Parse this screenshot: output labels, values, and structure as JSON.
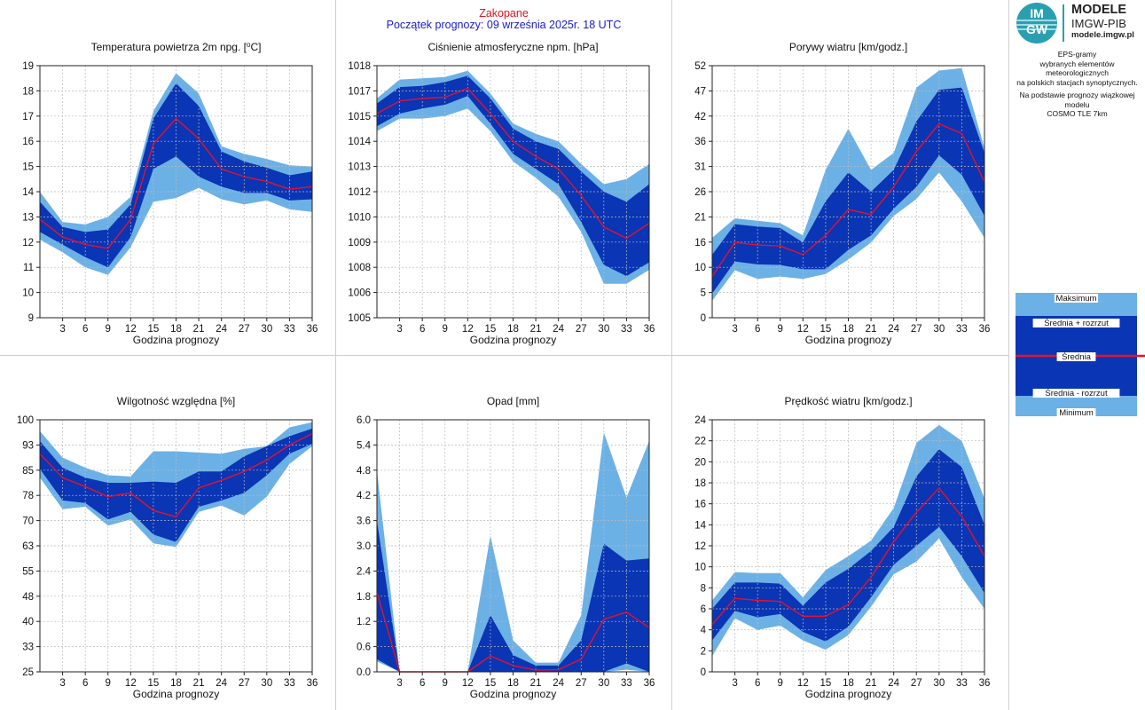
{
  "header": {
    "station": "Zakopane",
    "forecast_start": "Początek prognozy: 09 września 2025r. 18 UTC"
  },
  "logo": {
    "mark_top": "IM",
    "mark_bottom": "GW",
    "line1": "MODELE",
    "line2": "IMGW-PIB",
    "line3": "modele.imgw.pl"
  },
  "info": {
    "line1": "EPS-gramy",
    "line2": "wybranych elementów meteorologicznych",
    "line3": "na polskich stacjach  synoptycznych.",
    "line4": "Na podstawie prognozy wiązkowej modelu",
    "line5": "COSMO TLE 7km"
  },
  "legend": {
    "max": "Maksimum",
    "mean_plus": "Średnia + rozrzut",
    "mean": "Średnia",
    "mean_minus": "Średnia - rozrzut",
    "min": "Minimum"
  },
  "colors": {
    "outer_band": "#6cb1e6",
    "inner_band": "#0a35b4",
    "mean_line": "#e8102c",
    "grid": "#b9b9b9"
  },
  "chart_data": [
    {
      "id": "temp",
      "type": "area",
      "title": "Temperatura powietrza 2m npg. [",
      "title_sup": "o",
      "title_end": "C]",
      "xlabel": "Godzina prognozy",
      "x": [
        0,
        3,
        6,
        9,
        12,
        15,
        18,
        21,
        24,
        27,
        30,
        33,
        36
      ],
      "xticks": [
        3,
        6,
        9,
        12,
        15,
        18,
        21,
        24,
        27,
        30,
        33,
        36
      ],
      "xlim": [
        0,
        36
      ],
      "yticks": [
        "9",
        "10",
        "11",
        "12",
        "13",
        "14",
        "15",
        "16",
        "17",
        "18",
        "19"
      ],
      "ylim": [
        9,
        19
      ],
      "series": {
        "max": [
          14.0,
          12.8,
          12.7,
          13.0,
          13.8,
          17.2,
          18.7,
          17.9,
          15.8,
          15.5,
          15.3,
          15.05,
          15.0
        ],
        "mean_plus": [
          13.6,
          12.6,
          12.4,
          12.5,
          13.5,
          16.9,
          18.3,
          17.4,
          15.6,
          15.2,
          14.95,
          14.65,
          14.8
        ],
        "mean": [
          12.9,
          12.2,
          11.9,
          11.75,
          12.9,
          15.9,
          16.9,
          16.1,
          14.9,
          14.6,
          14.4,
          14.1,
          14.2
        ],
        "mean_minus": [
          12.4,
          11.9,
          11.4,
          11.0,
          12.2,
          14.9,
          15.4,
          14.6,
          14.2,
          13.95,
          13.95,
          13.65,
          13.7
        ],
        "min": [
          12.1,
          11.6,
          11.0,
          10.7,
          11.8,
          13.6,
          13.75,
          14.15,
          13.7,
          13.5,
          13.65,
          13.3,
          13.2
        ]
      }
    },
    {
      "id": "press",
      "type": "area",
      "title": "Ciśnienie atmosferyczne npm. [hPa]",
      "xlabel": "Godzina prognozy",
      "x": [
        0,
        3,
        6,
        9,
        12,
        15,
        18,
        21,
        24,
        27,
        30,
        33,
        36
      ],
      "xticks": [
        3,
        6,
        9,
        12,
        15,
        18,
        21,
        24,
        27,
        30,
        33,
        36
      ],
      "xlim": [
        0,
        36
      ],
      "yticks": [
        "1005",
        "1006",
        "1008",
        "1009",
        "1010",
        "1012",
        "1013",
        "1014",
        "1015",
        "1017",
        "1018"
      ],
      "ylim": [
        0,
        10
      ],
      "series": {
        "max": [
          8.7,
          9.45,
          9.5,
          9.55,
          9.8,
          8.9,
          7.7,
          7.3,
          7.0,
          6.1,
          5.3,
          5.5,
          6.1
        ],
        "mean_plus": [
          8.5,
          9.15,
          9.2,
          9.35,
          9.6,
          8.7,
          7.5,
          7.0,
          6.7,
          5.8,
          5.0,
          4.6,
          5.3
        ],
        "mean": [
          8.1,
          8.6,
          8.7,
          8.75,
          9.1,
          8.1,
          7.0,
          6.4,
          5.9,
          4.85,
          3.6,
          3.15,
          3.75
        ],
        "mean_minus": [
          7.6,
          8.1,
          8.3,
          8.45,
          8.8,
          7.7,
          6.5,
          5.9,
          5.3,
          3.8,
          2.1,
          1.65,
          2.2
        ],
        "min": [
          7.4,
          7.9,
          7.9,
          8.0,
          8.3,
          7.4,
          6.2,
          5.55,
          4.8,
          3.4,
          1.35,
          1.35,
          1.9
        ]
      }
    },
    {
      "id": "gust",
      "type": "area",
      "title": "Porywy wiatru [km/godz.]",
      "xlabel": "Godzina prognozy",
      "x": [
        0,
        3,
        6,
        9,
        12,
        15,
        18,
        21,
        24,
        27,
        30,
        33,
        36
      ],
      "xticks": [
        3,
        6,
        9,
        12,
        15,
        18,
        21,
        24,
        27,
        30,
        33,
        36
      ],
      "xlim": [
        0,
        36
      ],
      "yticks": [
        "0",
        "5",
        "10",
        "16",
        "21",
        "26",
        "31",
        "36",
        "42",
        "47",
        "52"
      ],
      "ylim": [
        0,
        52
      ],
      "series": {
        "max": [
          16.5,
          20.5,
          20.0,
          19.5,
          17.0,
          30.5,
          39.0,
          30.5,
          34.0,
          47.5,
          51.0,
          51.5,
          35.0
        ],
        "mean_plus": [
          13.0,
          19.3,
          18.8,
          18.5,
          15.5,
          24.0,
          30.0,
          26.0,
          30.5,
          40.5,
          47.0,
          47.5,
          34.0
        ],
        "mean": [
          8.5,
          15.5,
          15.0,
          14.8,
          13.0,
          17.0,
          22.3,
          21.3,
          27.0,
          34.3,
          40.0,
          38.0,
          28.0
        ],
        "mean_minus": [
          5.0,
          11.6,
          11.0,
          10.9,
          10.0,
          10.0,
          14.0,
          17.0,
          22.5,
          27.0,
          33.5,
          29.5,
          21.0
        ],
        "min": [
          3.5,
          9.8,
          8.0,
          8.5,
          8.0,
          9.0,
          12.0,
          15.5,
          21.0,
          24.5,
          30.0,
          24.0,
          16.5
        ]
      }
    },
    {
      "id": "hum",
      "type": "area",
      "title": "Wilgotność względna [%]",
      "xlabel": "Godzina prognozy",
      "x": [
        0,
        3,
        6,
        9,
        12,
        15,
        18,
        21,
        24,
        27,
        30,
        33,
        36
      ],
      "xticks": [
        3,
        6,
        9,
        12,
        15,
        18,
        21,
        24,
        27,
        30,
        33,
        36
      ],
      "xlim": [
        0,
        36
      ],
      "yticks": [
        "25",
        "33",
        "40",
        "48",
        "55",
        "63",
        "70",
        "78",
        "85",
        "93",
        "100"
      ],
      "ylim": [
        0,
        10
      ],
      "series": {
        "max": [
          9.55,
          8.5,
          8.1,
          7.8,
          7.75,
          8.75,
          8.75,
          8.7,
          8.65,
          8.85,
          8.95,
          9.7,
          9.9
        ],
        "mean_plus": [
          9.15,
          8.1,
          7.7,
          7.5,
          7.5,
          7.55,
          7.5,
          7.95,
          7.95,
          8.55,
          8.95,
          9.35,
          9.65
        ],
        "mean": [
          8.65,
          7.7,
          7.35,
          6.95,
          7.1,
          6.4,
          6.15,
          7.3,
          7.6,
          7.95,
          8.4,
          9.0,
          9.45
        ],
        "mean_minus": [
          8.05,
          6.8,
          6.7,
          6.05,
          6.35,
          5.45,
          5.15,
          6.55,
          6.8,
          7.1,
          7.8,
          8.65,
          9.05
        ],
        "min": [
          7.7,
          6.45,
          6.55,
          5.8,
          6.05,
          5.1,
          4.95,
          6.35,
          6.6,
          6.2,
          6.95,
          8.25,
          8.95
        ]
      }
    },
    {
      "id": "rain",
      "type": "area",
      "title": "Opad [mm]",
      "xlabel": "Godzina prognozy",
      "x": [
        0,
        3,
        6,
        9,
        12,
        15,
        18,
        21,
        24,
        27,
        30,
        33,
        36
      ],
      "xticks": [
        3,
        6,
        9,
        12,
        15,
        18,
        21,
        24,
        27,
        30,
        33,
        36
      ],
      "xlim": [
        0,
        36
      ],
      "yticks": [
        "0.0",
        "0.6",
        "1.2",
        "1.8",
        "2.4",
        "3.0",
        "3.6",
        "4.2",
        "4.8",
        "5.4",
        "6.0"
      ],
      "ylim": [
        0,
        6
      ],
      "series": {
        "max": [
          4.8,
          0,
          0,
          0,
          0,
          3.25,
          0.75,
          0.22,
          0.22,
          1.35,
          5.7,
          4.15,
          5.5
        ],
        "mean_plus": [
          3.6,
          0,
          0,
          0,
          0,
          1.35,
          0.4,
          0.15,
          0.15,
          0.75,
          3.05,
          2.65,
          2.7
        ],
        "mean": [
          1.9,
          0,
          0,
          0,
          0,
          0.38,
          0.15,
          0.04,
          0.05,
          0.3,
          1.25,
          1.42,
          1.05
        ],
        "mean_minus": [
          0.3,
          0,
          0,
          0,
          0,
          0,
          0,
          0,
          0,
          0,
          0,
          0.2,
          0
        ],
        "min": [
          0.25,
          0,
          0,
          0,
          0,
          0,
          0,
          0,
          0,
          0,
          0,
          0.05,
          0
        ]
      }
    },
    {
      "id": "wind",
      "type": "area",
      "title": "Prędkość wiatru [km/godz.]",
      "xlabel": "Godzina prognozy",
      "x": [
        0,
        3,
        6,
        9,
        12,
        15,
        18,
        21,
        24,
        27,
        30,
        33,
        36
      ],
      "xticks": [
        3,
        6,
        9,
        12,
        15,
        18,
        21,
        24,
        27,
        30,
        33,
        36
      ],
      "xlim": [
        0,
        36
      ],
      "yticks": [
        "0",
        "2",
        "4",
        "6",
        "8",
        "10",
        "12",
        "14",
        "16",
        "18",
        "20",
        "22",
        "24"
      ],
      "ylim": [
        0,
        24
      ],
      "series": {
        "max": [
          6.8,
          9.5,
          9.4,
          9.4,
          7.1,
          9.7,
          11.0,
          12.5,
          15.6,
          21.8,
          23.5,
          22.0,
          16.5
        ],
        "mean_plus": [
          6.0,
          8.5,
          8.5,
          8.4,
          6.3,
          8.5,
          9.8,
          11.5,
          13.8,
          18.6,
          21.2,
          19.5,
          14.0
        ],
        "mean": [
          4.5,
          7.0,
          6.8,
          6.7,
          5.3,
          5.3,
          6.4,
          9.0,
          12.4,
          15.2,
          17.5,
          14.8,
          11.0
        ],
        "mean_minus": [
          3.0,
          5.8,
          5.2,
          5.5,
          3.8,
          2.9,
          4.3,
          7.1,
          10.2,
          12.0,
          13.8,
          11.0,
          7.5
        ],
        "min": [
          1.5,
          5.1,
          4.0,
          4.4,
          3.0,
          2.1,
          3.5,
          6.2,
          9.3,
          10.5,
          12.7,
          9.0,
          6.0
        ]
      }
    }
  ]
}
